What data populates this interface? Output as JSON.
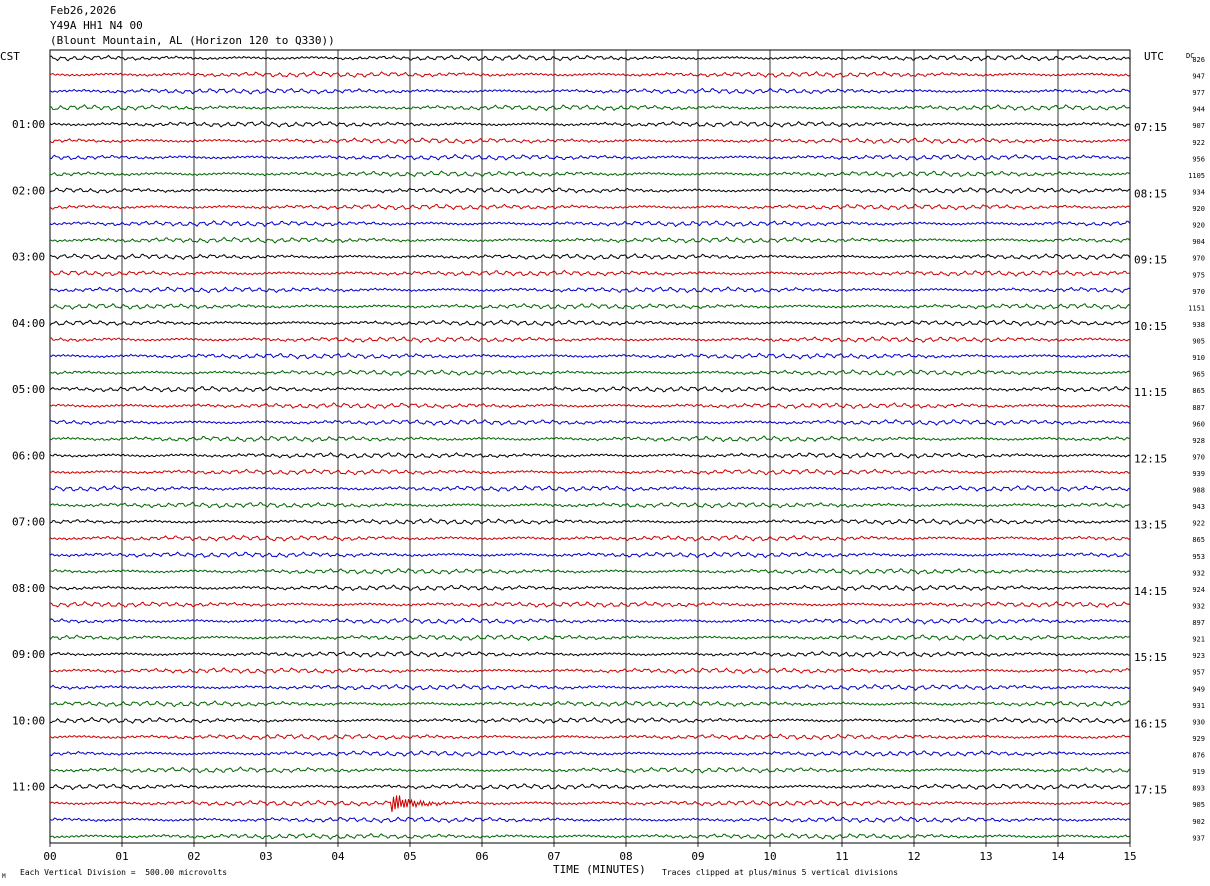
{
  "header": {
    "date": "Feb26,2026",
    "station": "Y49A HH1 N4 00",
    "location": "(Blount Mountain, AL (Horizon 120 to Q330))"
  },
  "left_axis_label": "CST",
  "right_axis_label": "UTC",
  "dc_label": "DC",
  "x_axis_label": "TIME (MINUTES)",
  "footer": {
    "scale_note": "Each Vertical Division =  500.00 microvolts",
    "clip_note": "Traces clipped at plus/minus 5 vertical divisions",
    "corner_mark": "M"
  },
  "colors": {
    "trace_cycle": [
      "#000000",
      "#cc0000",
      "#0000cc",
      "#006600"
    ],
    "grid": "#000000"
  },
  "chart_data": {
    "type": "line",
    "title": "Feb26,2026 Y49A HH1 N4 00",
    "xlabel": "TIME (MINUTES)",
    "xlim": [
      0,
      15
    ],
    "x_ticks": [
      "00",
      "01",
      "02",
      "03",
      "04",
      "05",
      "06",
      "07",
      "08",
      "09",
      "10",
      "11",
      "12",
      "13",
      "14",
      "15"
    ],
    "rows_per_hour": 4,
    "row_minutes": 15,
    "cst_labels": [
      "01:00",
      "02:00",
      "03:00",
      "04:00",
      "05:00",
      "06:00",
      "07:00",
      "08:00",
      "09:00",
      "10:00",
      "11:00"
    ],
    "utc_labels": [
      "07:15",
      "08:15",
      "09:15",
      "10:15",
      "11:15",
      "12:15",
      "13:15",
      "14:15",
      "15:15",
      "16:15",
      "17:15"
    ],
    "dc_offsets": [
      826,
      947,
      977,
      944,
      907,
      922,
      956,
      1105,
      934,
      920,
      920,
      904,
      970,
      975,
      970,
      1151,
      938,
      905,
      910,
      965,
      865,
      887,
      960,
      928,
      970,
      939,
      988,
      943,
      922,
      865,
      953,
      932,
      924,
      932,
      897,
      921,
      923,
      957,
      949,
      931,
      930,
      929,
      876,
      919,
      893,
      905,
      902,
      937
    ],
    "events": [
      {
        "trace_index": 45,
        "minute": 4.75,
        "description_text": ""
      }
    ]
  }
}
